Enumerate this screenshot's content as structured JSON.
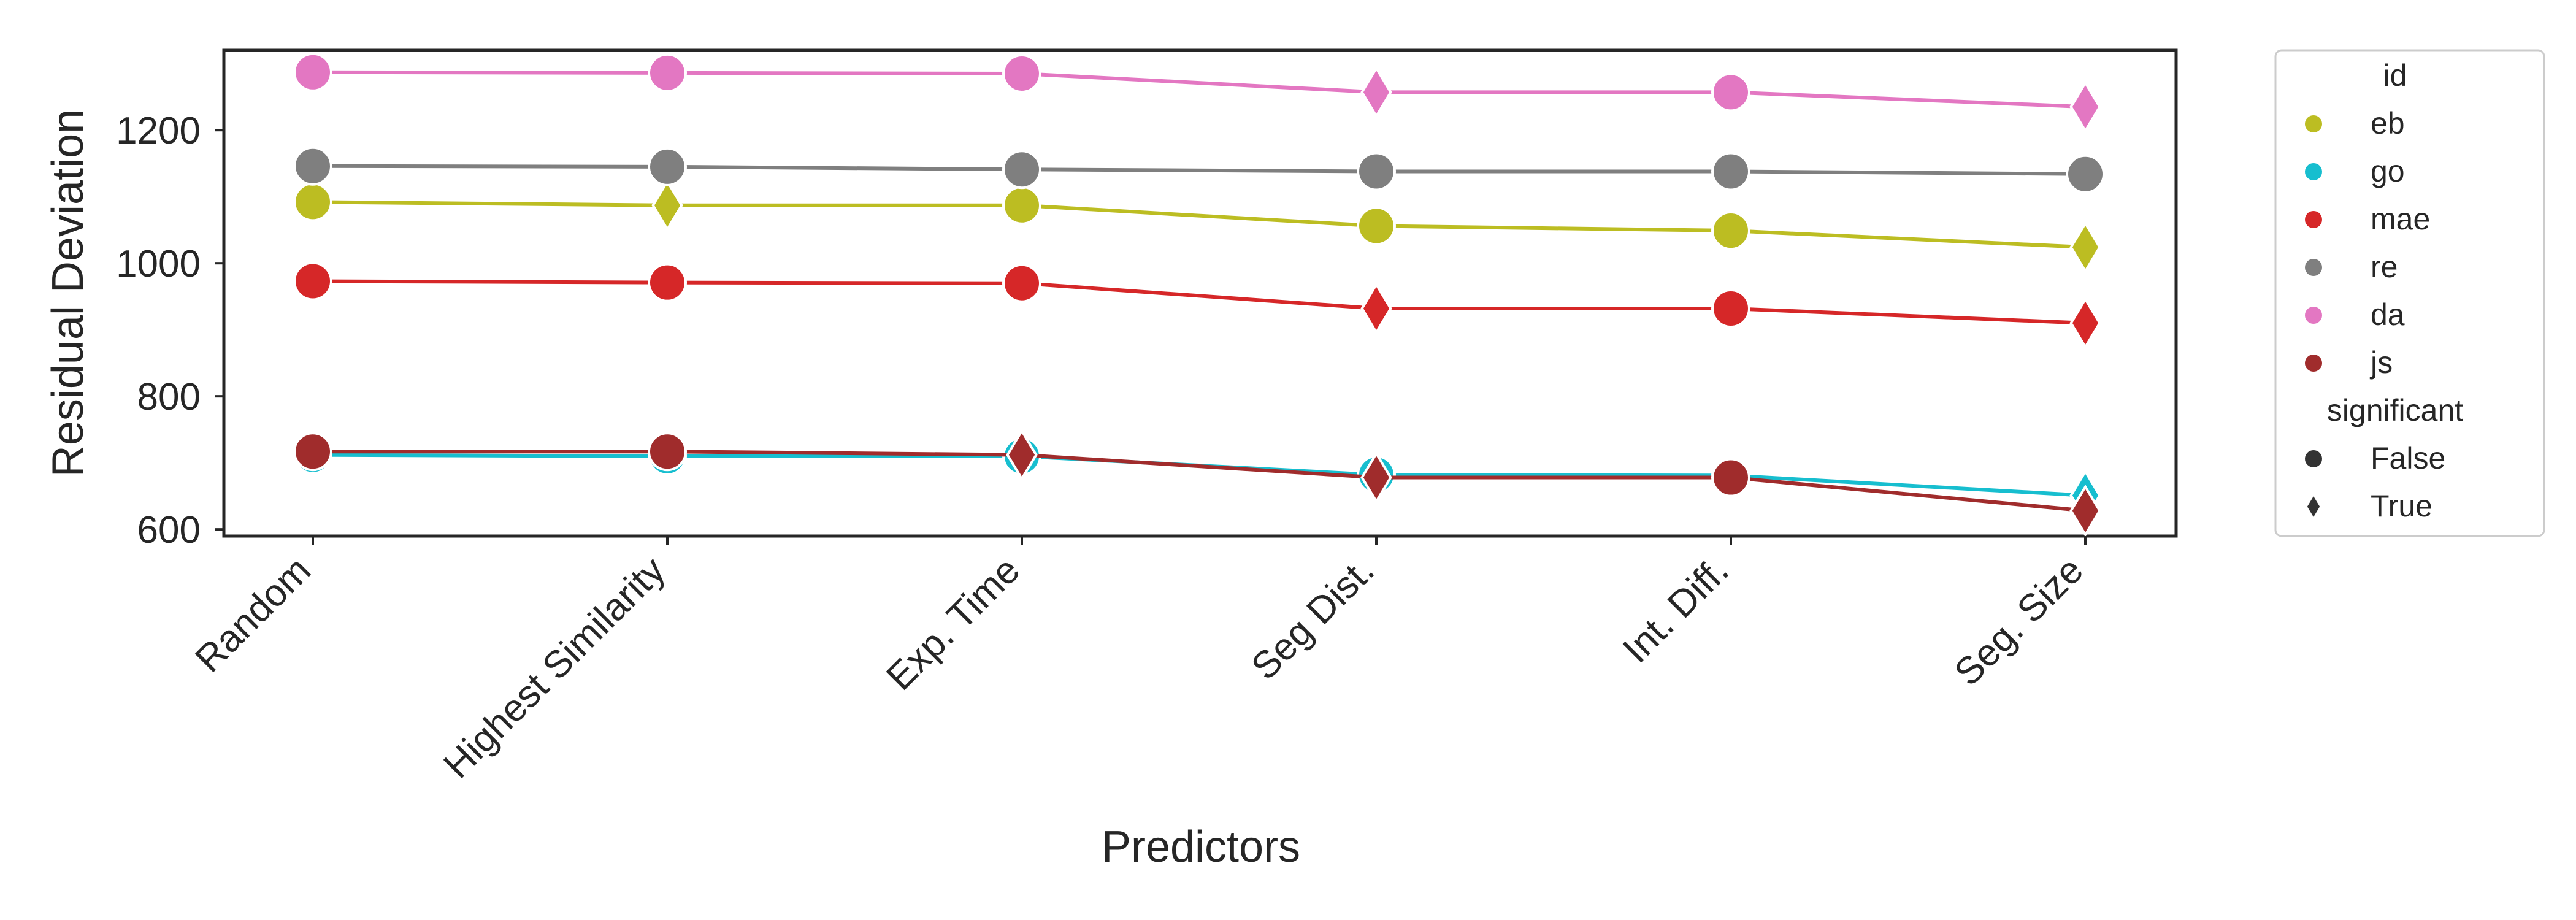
{
  "chart_data": {
    "type": "line",
    "xlabel": "Predictors",
    "ylabel": "Residual Deviation",
    "categories": [
      "Random",
      "Highest Similarity",
      "Exp. Time",
      "Seg Dist.",
      "Int. Diff.",
      "Seg. Size"
    ],
    "ylim": [
      590,
      1320
    ],
    "yticks": [
      600,
      800,
      1000,
      1200
    ],
    "grid": false,
    "legend_placement": "outside-right",
    "legend": {
      "hue_title": "id",
      "style_title": "significant",
      "style_entries": [
        {
          "label": "False",
          "marker": "circle"
        },
        {
          "label": "True",
          "marker": "diamond"
        }
      ]
    },
    "series": [
      {
        "name": "eb",
        "color": "#bcbd22",
        "values": [
          1092,
          1087,
          1087,
          1056,
          1049,
          1024
        ],
        "significant": [
          false,
          true,
          false,
          false,
          false,
          true
        ]
      },
      {
        "name": "go",
        "color": "#17becf",
        "values": [
          712,
          710,
          710,
          682,
          681,
          651
        ],
        "significant": [
          false,
          false,
          false,
          false,
          false,
          true
        ]
      },
      {
        "name": "mae",
        "color": "#d62728",
        "values": [
          973,
          971,
          970,
          932,
          932,
          910
        ],
        "significant": [
          false,
          false,
          false,
          true,
          false,
          true
        ]
      },
      {
        "name": "re",
        "color": "#7f7f7f",
        "values": [
          1146,
          1145,
          1141,
          1138,
          1138,
          1134
        ],
        "significant": [
          false,
          false,
          false,
          false,
          false,
          false
        ]
      },
      {
        "name": "da",
        "color": "#e377c2",
        "values": [
          1287,
          1286,
          1285,
          1257,
          1257,
          1235
        ],
        "significant": [
          false,
          false,
          false,
          true,
          false,
          true
        ]
      },
      {
        "name": "js",
        "color": "#a02c2c",
        "values": [
          717,
          717,
          712,
          678,
          678,
          628
        ],
        "significant": [
          false,
          false,
          true,
          true,
          false,
          true
        ]
      }
    ]
  }
}
